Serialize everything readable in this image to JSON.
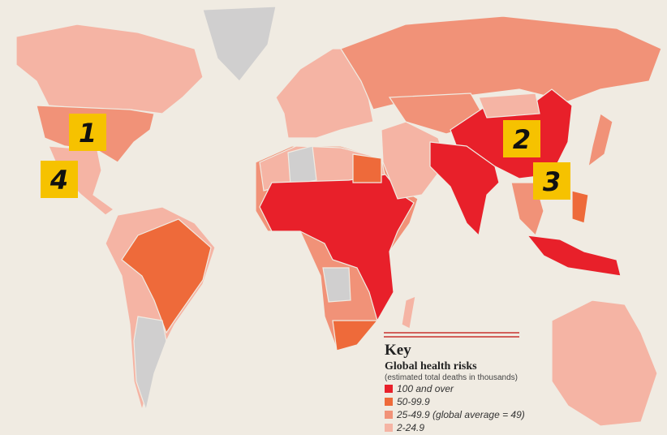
{
  "key": {
    "title": "Key",
    "heading": "Global health risks",
    "note": "(estimated total deaths in thousands)",
    "items": [
      {
        "label": "100 and over",
        "color": "#e8202a"
      },
      {
        "label": "50-99.9",
        "color": "#ee6a3a"
      },
      {
        "label": "25-49.9 (global average = 49)",
        "color": "#f19278"
      },
      {
        "label": "2-24.9",
        "color": "#f5b4a4"
      }
    ]
  },
  "markers": [
    "1",
    "2",
    "3",
    "4"
  ]
}
